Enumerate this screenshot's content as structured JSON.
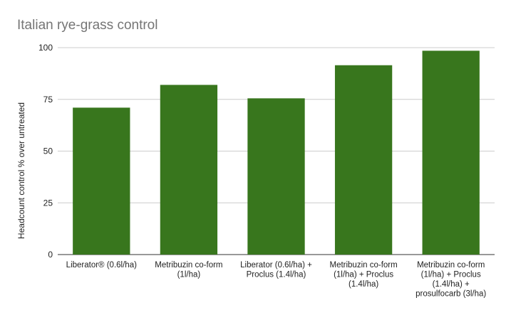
{
  "chart_data": {
    "type": "bar",
    "title": "Italian rye-grass control",
    "xlabel": "",
    "ylabel": "Headcount control % over untreated",
    "ylim": [
      0,
      100
    ],
    "yticks": [
      0,
      25,
      50,
      75,
      100
    ],
    "grid": true,
    "legend": "none",
    "bar_color": "#38761d",
    "categories": [
      [
        "Liberator® (0.6l/ha)"
      ],
      [
        "Metribuzin co-form",
        "(1l/ha)"
      ],
      [
        "Liberator (0.6l/ha) +",
        "Proclus (1.4l/ha)"
      ],
      [
        "Metribuzin co-form",
        "(1l/ha) + Proclus",
        "(1.4l/ha)"
      ],
      [
        "Metribuzin co-form",
        "(1l/ha) + Proclus",
        "(1.4l/ha) +",
        "prosulfocarb (3l/ha)"
      ]
    ],
    "values": [
      71,
      82,
      75.5,
      91.5,
      98.5
    ]
  }
}
